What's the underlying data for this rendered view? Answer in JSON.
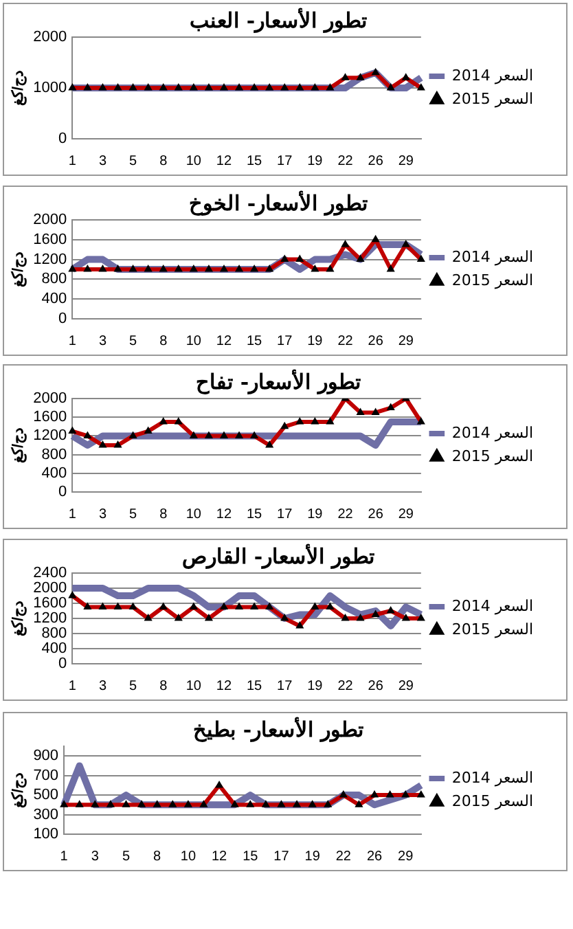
{
  "chart_data": [
    {
      "type": "line",
      "title": "تطور الأسعار- العنب",
      "ylabel": "دج/كغ",
      "categories": [
        "1",
        null,
        "3",
        null,
        "5",
        null,
        "8",
        null,
        "10",
        null,
        "12",
        null,
        "15",
        null,
        "17",
        null,
        "19",
        null,
        "22",
        null,
        "26",
        null,
        "29",
        null
      ],
      "ylim": [
        0,
        2000
      ],
      "yticks": [
        0,
        1000,
        2000
      ],
      "grid": "y",
      "legend": "right",
      "series": [
        {
          "name": "السعر 2015",
          "color": "#c00000",
          "marker": "triangle",
          "values": [
            1000,
            1000,
            1000,
            1000,
            1000,
            1000,
            1000,
            1000,
            1000,
            1000,
            1000,
            1000,
            1000,
            1000,
            1000,
            1000,
            1000,
            1000,
            1200,
            1200,
            1300,
            1000,
            1200,
            1000
          ]
        },
        {
          "name": "السعر 2014",
          "color": "#6f6fa6",
          "marker": "none",
          "values": [
            1000,
            1000,
            1000,
            1000,
            1000,
            1000,
            1000,
            1000,
            1000,
            1000,
            1000,
            1000,
            1000,
            1000,
            1000,
            1000,
            1000,
            1000,
            1000,
            1200,
            1300,
            1000,
            1000,
            1200
          ]
        }
      ]
    },
    {
      "type": "line",
      "title": "تطور الأسعار- الخوخ",
      "ylabel": "دج/كغ",
      "categories": [
        "1",
        null,
        "3",
        null,
        "5",
        null,
        "8",
        null,
        "10",
        null,
        "12",
        null,
        "15",
        null,
        "17",
        null,
        "19",
        null,
        "22",
        null,
        "26",
        null,
        "29",
        null
      ],
      "ylim": [
        0,
        2000
      ],
      "yticks": [
        0,
        400,
        800,
        1200,
        1600,
        2000
      ],
      "grid": "y",
      "legend": "right",
      "series": [
        {
          "name": "السعر 2015",
          "color": "#c00000",
          "marker": "triangle",
          "values": [
            1000,
            1000,
            1000,
            1000,
            1000,
            1000,
            1000,
            1000,
            1000,
            1000,
            1000,
            1000,
            1000,
            1000,
            1200,
            1200,
            1000,
            1000,
            1500,
            1200,
            1600,
            1000,
            1500,
            1200
          ]
        },
        {
          "name": "السعر 2014",
          "color": "#6f6fa6",
          "marker": "none",
          "values": [
            1000,
            1200,
            1200,
            1000,
            1000,
            1000,
            1000,
            1000,
            1000,
            1000,
            1000,
            1000,
            1000,
            1000,
            1200,
            1000,
            1200,
            1200,
            1300,
            1200,
            1500,
            1500,
            1500,
            1300
          ]
        }
      ]
    },
    {
      "type": "line",
      "title": "تطور الأسعار- تفاح",
      "ylabel": "دج/كغ",
      "categories": [
        "1",
        null,
        "3",
        null,
        "5",
        null,
        "8",
        null,
        "10",
        null,
        "12",
        null,
        "15",
        null,
        "17",
        null,
        "19",
        null,
        "22",
        null,
        "26",
        null,
        "29",
        null
      ],
      "ylim": [
        0,
        2000
      ],
      "yticks": [
        0,
        400,
        800,
        1200,
        1600,
        2000
      ],
      "grid": "y",
      "legend": "right",
      "series": [
        {
          "name": "السعر 2015",
          "color": "#c00000",
          "marker": "triangle",
          "values": [
            1300,
            1200,
            1000,
            1000,
            1200,
            1300,
            1500,
            1500,
            1200,
            1200,
            1200,
            1200,
            1200,
            1000,
            1400,
            1500,
            1500,
            1500,
            2000,
            1700,
            1700,
            1800,
            2000,
            1500
          ]
        },
        {
          "name": "السعر 2014",
          "color": "#6f6fa6",
          "marker": "none",
          "values": [
            1200,
            1000,
            1200,
            1200,
            1200,
            1200,
            1200,
            1200,
            1200,
            1200,
            1200,
            1200,
            1200,
            1200,
            1200,
            1200,
            1200,
            1200,
            1200,
            1200,
            1000,
            1500,
            1500,
            1500
          ]
        }
      ]
    },
    {
      "type": "line",
      "title": "تطور الأسعار- القارص",
      "ylabel": "دج/كغ",
      "categories": [
        "1",
        null,
        "3",
        null,
        "5",
        null,
        "8",
        null,
        "10",
        null,
        "12",
        null,
        "15",
        null,
        "17",
        null,
        "19",
        null,
        "22",
        null,
        "26",
        null,
        "29",
        null
      ],
      "ylim": [
        0,
        2400
      ],
      "yticks": [
        0,
        400,
        800,
        1200,
        1600,
        2000,
        2400
      ],
      "grid": "y",
      "legend": "right",
      "series": [
        {
          "name": "السعر 2015",
          "color": "#c00000",
          "marker": "triangle",
          "values": [
            1800,
            1500,
            1500,
            1500,
            1500,
            1200,
            1500,
            1200,
            1500,
            1200,
            1500,
            1500,
            1500,
            1500,
            1200,
            1000,
            1500,
            1500,
            1200,
            1200,
            1300,
            1400,
            1200,
            1200
          ]
        },
        {
          "name": "السعر 2014",
          "color": "#6f6fa6",
          "marker": "none",
          "values": [
            2000,
            2000,
            2000,
            1800,
            1800,
            2000,
            2000,
            2000,
            1800,
            1500,
            1500,
            1800,
            1800,
            1500,
            1200,
            1300,
            1300,
            1800,
            1500,
            1300,
            1400,
            1000,
            1500,
            1300
          ]
        }
      ]
    },
    {
      "type": "line",
      "title": "تطور الأسعار- بطيخ",
      "ylabel": "دج/كغ",
      "categories": [
        "1",
        null,
        "3",
        null,
        "5",
        null,
        "8",
        null,
        "10",
        null,
        "12",
        null,
        "15",
        null,
        "17",
        null,
        "19",
        null,
        "22",
        null,
        "26",
        null,
        "29",
        null
      ],
      "ylim": [
        100,
        1000
      ],
      "yticks": [
        100,
        300,
        500,
        700,
        900
      ],
      "grid": "y",
      "legend": "right",
      "series": [
        {
          "name": "السعر 2015",
          "color": "#c00000",
          "marker": "triangle",
          "values": [
            400,
            400,
            400,
            400,
            400,
            400,
            400,
            400,
            400,
            400,
            600,
            400,
            400,
            400,
            400,
            400,
            400,
            400,
            500,
            400,
            500,
            500,
            500,
            500
          ]
        },
        {
          "name": "السعر 2014",
          "color": "#6f6fa6",
          "marker": "none",
          "values": [
            400,
            800,
            400,
            400,
            500,
            400,
            400,
            400,
            400,
            400,
            400,
            400,
            500,
            400,
            400,
            400,
            400,
            400,
            500,
            500,
            400,
            450,
            500,
            600
          ]
        }
      ]
    }
  ]
}
